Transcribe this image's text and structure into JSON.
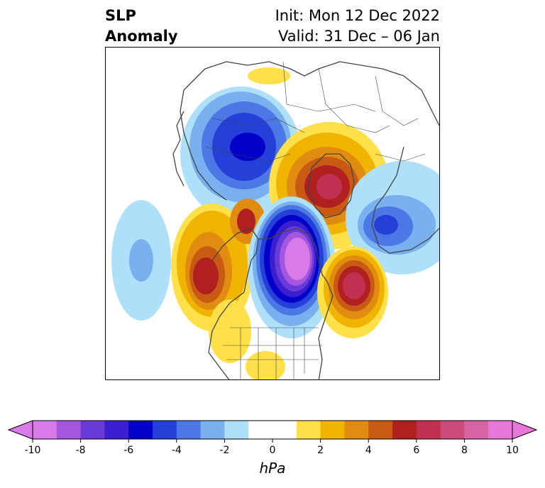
{
  "title": {
    "line1": "SLP",
    "line2": "Anomaly",
    "init": "Init: Mon 12 Dec 2022",
    "valid": "Valid: 31 Dec – 06 Jan"
  },
  "colorbar": {
    "unit": "hPa",
    "ticks": [
      "-10",
      "-8",
      "-6",
      "-4",
      "-2",
      "0",
      "2",
      "4",
      "6",
      "8",
      "10"
    ],
    "colors": [
      "#d87ae8",
      "#a456e0",
      "#6a3ad8",
      "#3a1ed0",
      "#0000c8",
      "#2440d8",
      "#4c78e6",
      "#78b0f0",
      "#aee0fa",
      "#ffffff",
      "#ffffff",
      "#ffe048",
      "#f0b400",
      "#e08c10",
      "#c85a14",
      "#b02020",
      "#c03050",
      "#cc4a7a",
      "#d864a4",
      "#e878d8"
    ]
  },
  "colors": {
    "coast": "#444444",
    "border": "#000000"
  }
}
